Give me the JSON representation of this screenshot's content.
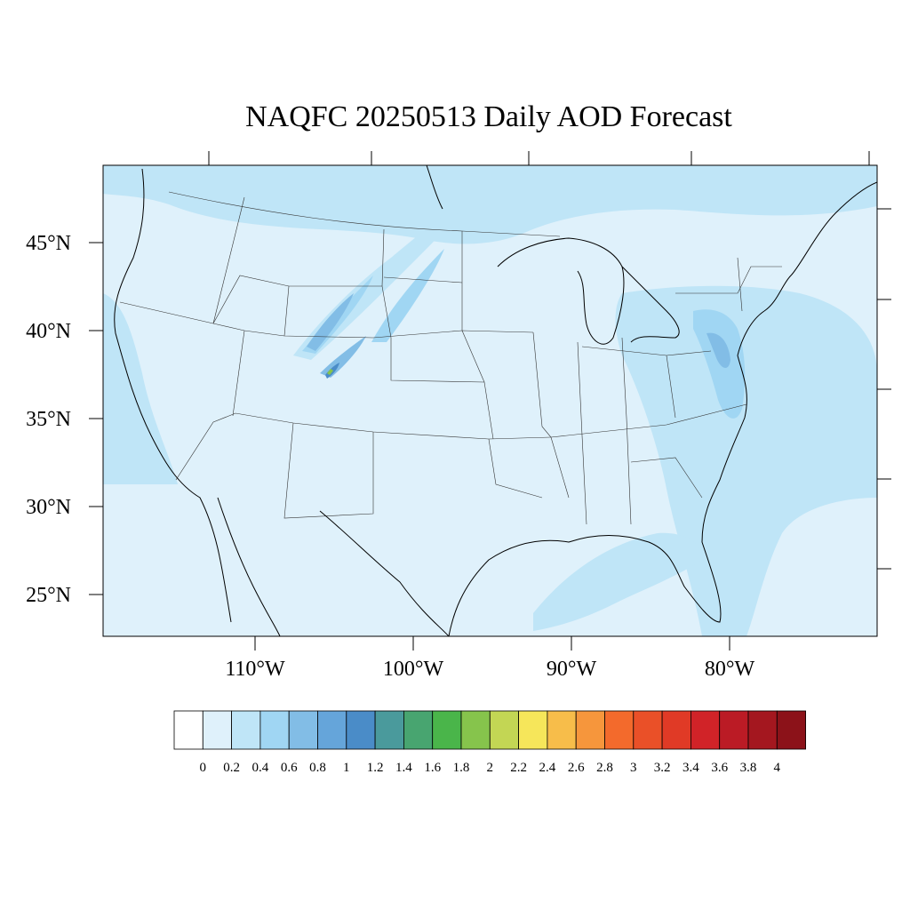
{
  "map": {
    "title": "NAQFC 20250513 Daily AOD Forecast",
    "lat_labels": [
      "45°N",
      "40°N",
      "35°N",
      "30°N",
      "25°N"
    ],
    "lat_values": [
      45,
      40,
      35,
      30,
      25
    ],
    "lon_labels": [
      "110°W",
      "100°W",
      "90°W",
      "80°W"
    ],
    "lon_values": [
      -110,
      -100,
      -90,
      -80
    ],
    "background_color": "#dff1fb",
    "colorbar": {
      "labels": [
        "0",
        "0.2",
        "0.4",
        "0.6",
        "0.8",
        "1",
        "1.2",
        "1.4",
        "1.6",
        "1.8",
        "2",
        "2.2",
        "2.4",
        "2.6",
        "2.8",
        "3",
        "3.2",
        "3.4",
        "3.6",
        "3.8",
        "4"
      ],
      "colors": [
        "#ffffff",
        "#dff1fb",
        "#bfe5f7",
        "#a0d6f3",
        "#82bde6",
        "#65a5da",
        "#4a8cc8",
        "#4a9a9c",
        "#48a570",
        "#4ab54a",
        "#86c44c",
        "#c3d654",
        "#f6e65a",
        "#f7bd4a",
        "#f6963c",
        "#f36a2c",
        "#ea5028",
        "#e03a26",
        "#d12328",
        "#bb1b25",
        "#a4171f",
        "#8c1219"
      ]
    }
  }
}
